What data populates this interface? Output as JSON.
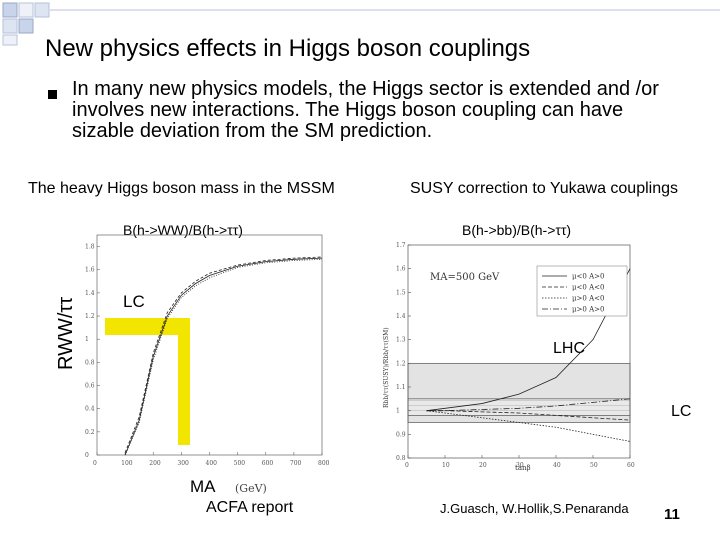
{
  "slide": {
    "title": "New physics effects in Higgs boson couplings",
    "bullet": "In many new physics models, the Higgs sector is extended and /or involves new interactions. The Higgs boson coupling can have sizable deviation from the SM prediction.",
    "page_number": "11",
    "accent_color": "#f2e600"
  },
  "left_panel": {
    "caption": "The heavy Higgs boson mass in the MSSM",
    "ratio_label": "B(h->WW)/B(h->ττ)",
    "y_axis_label": "RWW/ττ",
    "x_axis_label": "MA",
    "x_unit": "(GeV)",
    "lc_label": "LC",
    "source": "ACFA report"
  },
  "right_panel": {
    "caption": "SUSY correction to Yukawa couplings",
    "ratio_label": "B(h->bb)/B(h->ττ)",
    "y_axis_label": "Rbb/ττ(SUSY)/Rbb/ττ(SM)",
    "x_axis_label": "tanβ",
    "inset_label": "MA=500 GeV",
    "legend": [
      "μ<0 A>0",
      "μ<0 A<0",
      "μ>0 A<0",
      "μ>0 A>0"
    ],
    "lhc_label": "LHC",
    "lc_label": "LC",
    "source": "J.Guasch, W.Hollik,S.Penaranda"
  },
  "chart_data": [
    {
      "type": "line",
      "title": "",
      "xlabel": "MA (GeV)",
      "ylabel": "RWW/ττ",
      "xlim": [
        0,
        800
      ],
      "ylim": [
        0,
        1.9
      ],
      "x_ticks": [
        "0",
        "100",
        "200",
        "300",
        "400",
        "500",
        "600",
        "700",
        "800"
      ],
      "y_ticks": [
        "0",
        "0.2",
        "0.4",
        "0.6",
        "0.8",
        "1",
        "1.2",
        "1.4",
        "1.6",
        "1.8"
      ],
      "series": [
        {
          "x": [
            100,
            150,
            200,
            250,
            300,
            350,
            400,
            500,
            600,
            700,
            800
          ],
          "y": [
            0.0,
            0.3,
            0.85,
            1.2,
            1.38,
            1.48,
            1.55,
            1.63,
            1.67,
            1.69,
            1.7
          ]
        },
        {
          "x": [
            100,
            150,
            200,
            250,
            300,
            350,
            400,
            500,
            600,
            700,
            800
          ],
          "y": [
            0.02,
            0.33,
            0.88,
            1.23,
            1.4,
            1.5,
            1.57,
            1.64,
            1.68,
            1.7,
            1.71
          ]
        },
        {
          "x": [
            100,
            150,
            200,
            250,
            300,
            350,
            400,
            500,
            600,
            700,
            800
          ],
          "y": [
            0.0,
            0.28,
            0.82,
            1.18,
            1.36,
            1.46,
            1.53,
            1.62,
            1.66,
            1.68,
            1.69
          ]
        }
      ],
      "highlight": {
        "value": 1.1,
        "x_range": [
          200,
          240
        ]
      }
    },
    {
      "type": "line",
      "title": "",
      "xlabel": "tanβ",
      "ylabel": "Rbb/ττ(SUSY)/Rbb/ττ(SM)",
      "xlim": [
        0,
        60
      ],
      "ylim": [
        0.8,
        1.7
      ],
      "x_ticks": [
        "0",
        "10",
        "20",
        "30",
        "40",
        "50",
        "60"
      ],
      "y_ticks": [
        "0.8",
        "0.9",
        "1",
        "1.1",
        "1.2",
        "1.3",
        "1.4",
        "1.5",
        "1.6",
        "1.7"
      ],
      "series": [
        {
          "name": "μ<0 A>0",
          "x": [
            5,
            10,
            20,
            30,
            40,
            50,
            60
          ],
          "y": [
            1.0,
            1.01,
            1.03,
            1.07,
            1.14,
            1.3,
            1.6
          ]
        },
        {
          "name": "μ<0 A<0",
          "x": [
            5,
            10,
            20,
            30,
            40,
            50,
            60
          ],
          "y": [
            1.0,
            1.0,
            0.995,
            0.99,
            0.98,
            0.97,
            0.96
          ]
        },
        {
          "name": "μ>0 A<0",
          "x": [
            5,
            10,
            20,
            30,
            40,
            50,
            60
          ],
          "y": [
            1.0,
            0.99,
            0.97,
            0.95,
            0.93,
            0.9,
            0.87
          ]
        },
        {
          "name": "μ>0 A>0",
          "x": [
            5,
            10,
            20,
            30,
            40,
            50,
            60
          ],
          "y": [
            1.0,
            1.0,
            1.005,
            1.01,
            1.02,
            1.035,
            1.05
          ]
        }
      ],
      "bands": [
        {
          "name": "LHC",
          "y": [
            0.95,
            1.2
          ]
        },
        {
          "name": "LC",
          "y": [
            0.98,
            1.05
          ]
        }
      ]
    }
  ]
}
